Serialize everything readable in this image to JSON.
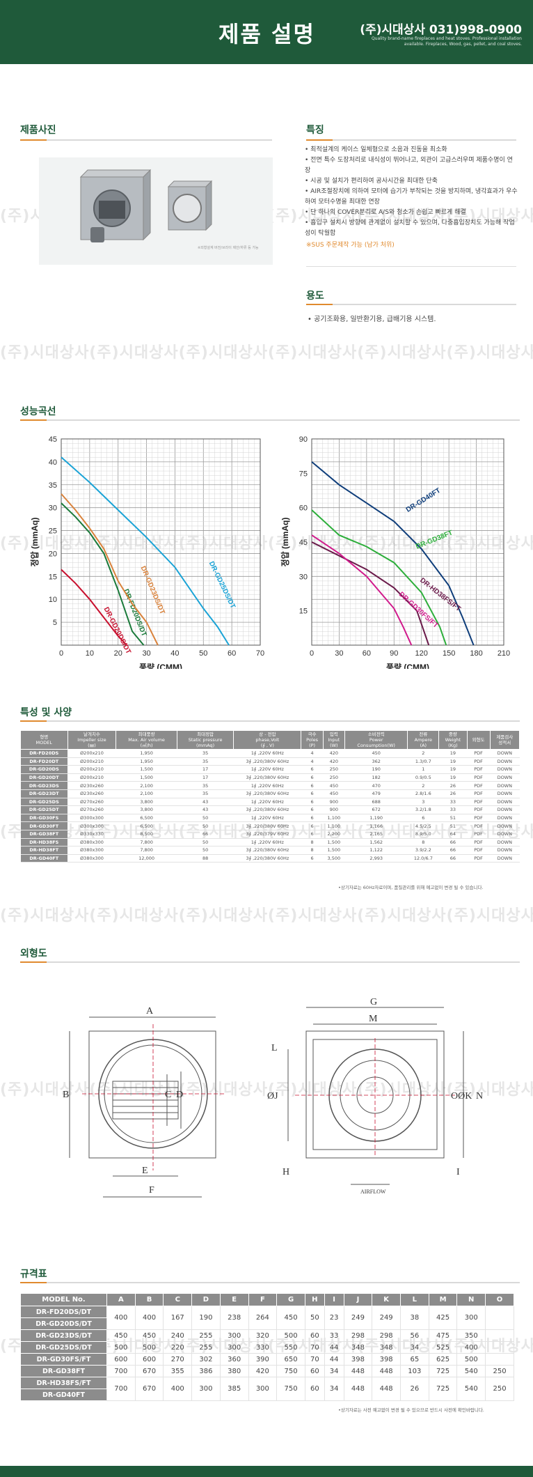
{
  "header": {
    "title": "제품 설명",
    "company": "(주)시대상사 031)998-0900",
    "tagline": "Quality brand-name fireplaces and heat stoves. Professional installation available. Fireplaces, Wood, gas, pellet, and coal stoves."
  },
  "watermark": "(주)시대상사(주)시대상사(주)시대상사(주)시대상사(주)시대상사(주)시대상사(주)시대상사",
  "sections": {
    "photo": "제품사진",
    "features": "특징",
    "usage": "용도",
    "performance": "성능곡선",
    "specs": "특성 및 사양",
    "outline": "외형도",
    "dimensions": "규격표"
  },
  "photo_caption": "※외형설계 버전/브라이 제안/하류 등 가능",
  "features": [
    "최적설계의 케이스 일체형으로 소음과 진동을 최소화",
    "전면 특수 도장처리로 내식성이 뛰어나고, 외관이 고급스러우며 제품수명이 연장",
    "시공 및 설치가 편리하여 공사시간을 최대한 단축",
    "AIR조절장치에 의하여 모터에 습기가 부착되는 것을 방지하며, 냉각효과가 우수하여 모터수명을 최대한 연장",
    "단 하나의 COVER분리로 A/S와 청소가 손쉽고 빠르게 해결",
    "흡입구 설치시 방향에 관계없이 설치할 수 있으며, 다중흡입장치도 가능해 작업성이 탁월함"
  ],
  "features_note": "※SUS 주문제작 가능 (남가 처위)",
  "usage": "• 공기조화용, 일반환기용, 급배기용 시스템.",
  "chart_data": [
    {
      "type": "line",
      "xlabel": "풍량 (CMM)",
      "ylabel": "정압 (mmAq)",
      "xlim": [
        0,
        70
      ],
      "ylim": [
        0,
        45
      ],
      "xticks": [
        0,
        10,
        20,
        30,
        40,
        50,
        60,
        70
      ],
      "yticks": [
        5,
        10,
        15,
        20,
        25,
        30,
        35,
        40,
        45
      ],
      "grid": true,
      "series": [
        {
          "name": "DR-GD20DS/DT",
          "color": "#c8102e",
          "x": [
            0,
            5,
            10,
            15,
            20,
            23
          ],
          "y": [
            16.5,
            13.5,
            10,
            6,
            2,
            0
          ]
        },
        {
          "name": "DR-FD20DS/DT",
          "color": "#1a7a3a",
          "x": [
            0,
            5,
            10,
            15,
            20,
            25,
            29
          ],
          "y": [
            31,
            28,
            24.5,
            20,
            12,
            3,
            0
          ]
        },
        {
          "name": "DR-GD23DS/DT",
          "color": "#d9823b",
          "x": [
            0,
            5,
            10,
            15,
            20,
            25,
            30,
            34
          ],
          "y": [
            33,
            29.5,
            25.5,
            21,
            14,
            9,
            5,
            0
          ]
        },
        {
          "name": "DR-GD25DS/DT",
          "color": "#1aa3d6",
          "x": [
            0,
            10,
            20,
            30,
            40,
            50,
            55,
            59
          ],
          "y": [
            41,
            35.5,
            29.5,
            23.5,
            17,
            8,
            4,
            0
          ]
        }
      ]
    },
    {
      "type": "line",
      "xlabel": "풍량 (CMM)",
      "ylabel": "정압 (mmAq)",
      "xlim": [
        0,
        210
      ],
      "ylim": [
        0,
        90
      ],
      "xticks": [
        0,
        30,
        60,
        90,
        120,
        150,
        180,
        210
      ],
      "yticks": [
        15,
        30,
        45,
        60,
        75,
        90
      ],
      "grid": true,
      "series": [
        {
          "name": "DR-GD40FT",
          "color": "#0e3d7a",
          "x": [
            0,
            30,
            60,
            90,
            120,
            150,
            165,
            177
          ],
          "y": [
            80,
            70,
            62,
            54,
            42,
            26,
            12,
            0
          ]
        },
        {
          "name": "DR-GD38FT",
          "color": "#2cae3a",
          "x": [
            0,
            30,
            60,
            90,
            120,
            140,
            147
          ],
          "y": [
            59,
            48,
            43,
            36,
            23,
            8,
            0
          ]
        },
        {
          "name": "DR-HD38FS/FT",
          "color": "#6a1a4a",
          "x": [
            0,
            30,
            60,
            90,
            115,
            128
          ],
          "y": [
            45,
            39,
            33,
            25,
            15,
            0
          ]
        },
        {
          "name": "DR-GD30FS/FT",
          "color": "#d11a8c",
          "x": [
            0,
            30,
            60,
            90,
            100,
            109
          ],
          "y": [
            48,
            40,
            30,
            16,
            8,
            0
          ]
        }
      ]
    }
  ],
  "spec_table": {
    "headers": [
      "형명\nMODEL",
      "날개치수\nImpeller size\n(㎜)",
      "최대풍량\nMax. Air volume\n(㎥/h)",
      "최대정압\nStatic pressure\n(mmAq)",
      "상 - 전압\nphase,Volt\n(∮ , V)",
      "극수\nPoles\n(P)",
      "입력\nInput\n(W)",
      "소비전력\nPower\nConsumption(W)",
      "전류\nAmpere\n(A)",
      "중량\nWeight\n(Kg)",
      "외형도",
      "제품검사\n성적서"
    ],
    "rows": [
      [
        "DR-FD20DS",
        "Ø200x210",
        "1,950",
        "35",
        "1∮ ,220V 60Hz",
        "4",
        "420",
        "450",
        "2",
        "19",
        "PDF",
        "DOWN"
      ],
      [
        "DR-FD20DT",
        "Ø200x210",
        "1,950",
        "35",
        "3∮ ,220/380V 60Hz",
        "4",
        "420",
        "362",
        "1.3/0.7",
        "19",
        "PDF",
        "DOWN"
      ],
      [
        "DR-GD20DS",
        "Ø200x210",
        "1,500",
        "17",
        "1∮ ,220V 60Hz",
        "6",
        "250",
        "190",
        "1",
        "19",
        "PDF",
        "DOWN"
      ],
      [
        "DR-GD20DT",
        "Ø200x210",
        "1,500",
        "17",
        "3∮ ,220/380V 60Hz",
        "6",
        "250",
        "182",
        "0.9/0.5",
        "19",
        "PDF",
        "DOWN"
      ],
      [
        "DR-GD23DS",
        "Ø230x260",
        "2,100",
        "35",
        "1∮ ,220V 60Hz",
        "6",
        "450",
        "470",
        "2",
        "26",
        "PDF",
        "DOWN"
      ],
      [
        "DR-GD23DT",
        "Ø230x260",
        "2,100",
        "35",
        "3∮ ,220/380V 60Hz",
        "6",
        "450",
        "479",
        "2.8/1.6",
        "26",
        "PDF",
        "DOWN"
      ],
      [
        "DR-GD25DS",
        "Ø270x260",
        "3,800",
        "43",
        "1∮ ,220V 60Hz",
        "6",
        "900",
        "688",
        "3",
        "33",
        "PDF",
        "DOWN"
      ],
      [
        "DR-GD25DT",
        "Ø270x260",
        "3,800",
        "43",
        "3∮ ,220/380V 60Hz",
        "6",
        "900",
        "672",
        "3.2/1.8",
        "33",
        "PDF",
        "DOWN"
      ],
      [
        "DR-GD30FS",
        "Ø300x300",
        "6,500",
        "50",
        "1∮ ,220V 60Hz",
        "6",
        "1,100",
        "1,190",
        "6",
        "51",
        "PDF",
        "DOWN"
      ],
      [
        "DR-GD30FT",
        "Ø300x300",
        "6,500",
        "50",
        "3∮ ,220/380V 60Hz",
        "6",
        "1,100",
        "1,166",
        "4.5/2.5",
        "51",
        "PDF",
        "DOWN"
      ],
      [
        "DR-GD38FT",
        "Ø330x330",
        "8,500",
        "66",
        "3∮ ,220/379V 60Hz",
        "6",
        "2,200",
        "2,165",
        "8.9/5.0",
        "64",
        "PDF",
        "DOWN"
      ],
      [
        "DR-HD38FS",
        "Ø380x300",
        "7,800",
        "50",
        "1∮ ,220V 60Hz",
        "8",
        "1,500",
        "1,562",
        "8",
        "66",
        "PDF",
        "DOWN"
      ],
      [
        "DR-HD38FT",
        "Ø380x300",
        "7,800",
        "50",
        "3∮ ,220/380V 60Hz",
        "8",
        "1,500",
        "1,122",
        "3.9/2.2",
        "66",
        "PDF",
        "DOWN"
      ],
      [
        "DR-GD40FT",
        "Ø380x300",
        "12,000",
        "88",
        "3∮ ,220/380V 60Hz",
        "6",
        "3,500",
        "2,993",
        "12.0/6.7",
        "66",
        "PDF",
        "DOWN"
      ]
    ],
    "note": "•상기자료는 60Hz자료이며, 품질관리를 위해 예고없이 변경 될 수 있습니다."
  },
  "drawing_labels": {
    "left": [
      "A",
      "B",
      "C",
      "D",
      "E",
      "F"
    ],
    "right": [
      "G",
      "M",
      "L",
      "ØJ",
      "OØK",
      "N",
      "H",
      "I"
    ],
    "airflow": "AIRFLOW"
  },
  "dim_table": {
    "headers": [
      "MODEL No.",
      "A",
      "B",
      "C",
      "D",
      "E",
      "F",
      "G",
      "H",
      "I",
      "J",
      "K",
      "L",
      "M",
      "N",
      "O"
    ],
    "groups": [
      {
        "models": [
          "DR-FD20DS/DT",
          "DR-GD20DS/DT"
        ],
        "values": [
          "400",
          "400",
          "167",
          "190",
          "238",
          "264",
          "450",
          "50",
          "23",
          "249",
          "249",
          "38",
          "425",
          "300",
          ""
        ]
      },
      {
        "models": [
          "DR-GD23DS/DT"
        ],
        "values": [
          "450",
          "450",
          "240",
          "255",
          "300",
          "320",
          "500",
          "60",
          "33",
          "298",
          "298",
          "56",
          "475",
          "350",
          ""
        ]
      },
      {
        "models": [
          "DR-GD25DS/DT"
        ],
        "values": [
          "500",
          "500",
          "220",
          "255",
          "300",
          "330",
          "550",
          "70",
          "44",
          "348",
          "348",
          "34",
          "525",
          "400",
          ""
        ]
      },
      {
        "models": [
          "DR-GD30FS/FT"
        ],
        "values": [
          "600",
          "600",
          "270",
          "302",
          "360",
          "390",
          "650",
          "70",
          "44",
          "398",
          "398",
          "65",
          "625",
          "500",
          ""
        ]
      },
      {
        "models": [
          "DR-GD38FT"
        ],
        "values": [
          "700",
          "670",
          "355",
          "386",
          "380",
          "420",
          "750",
          "60",
          "34",
          "448",
          "448",
          "103",
          "725",
          "540",
          "250"
        ]
      },
      {
        "models": [
          "DR-HD38FS/FT",
          "DR-GD40FT"
        ],
        "values": [
          "700",
          "670",
          "400",
          "300",
          "385",
          "300",
          "750",
          "60",
          "34",
          "448",
          "448",
          "26",
          "725",
          "540",
          "250"
        ]
      }
    ],
    "note": "•상기자료는 사전 예고없이 변경 될 수 있으므로 반드시 사전에 확인바랍니다."
  }
}
